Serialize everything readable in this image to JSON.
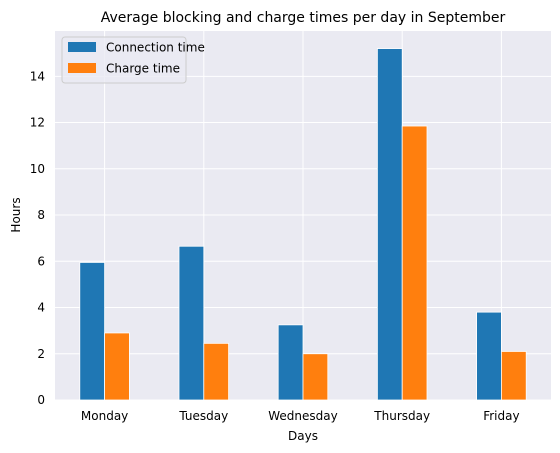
{
  "colors": {
    "background": "#ffffff",
    "plot_background": "#eaeaf2",
    "grid": "#ffffff",
    "text": "#000000",
    "series": [
      "#1f77b4",
      "#ff7f0e"
    ]
  },
  "chart_data": {
    "type": "bar",
    "title": "Average blocking and charge times per day in September",
    "xlabel": "Days",
    "ylabel": "Hours",
    "categories": [
      "Monday",
      "Tuesday",
      "Wednesday",
      "Thursday",
      "Friday"
    ],
    "series": [
      {
        "name": "Connection time",
        "values": [
          5.95,
          6.65,
          3.25,
          15.2,
          3.8
        ]
      },
      {
        "name": "Charge time",
        "values": [
          2.9,
          2.45,
          2.0,
          11.85,
          2.1
        ]
      }
    ],
    "ylim": [
      0,
      15.96
    ],
    "yticks": [
      0,
      2,
      4,
      6,
      8,
      10,
      12,
      14
    ],
    "grid": true,
    "legend_position": "top-left"
  }
}
